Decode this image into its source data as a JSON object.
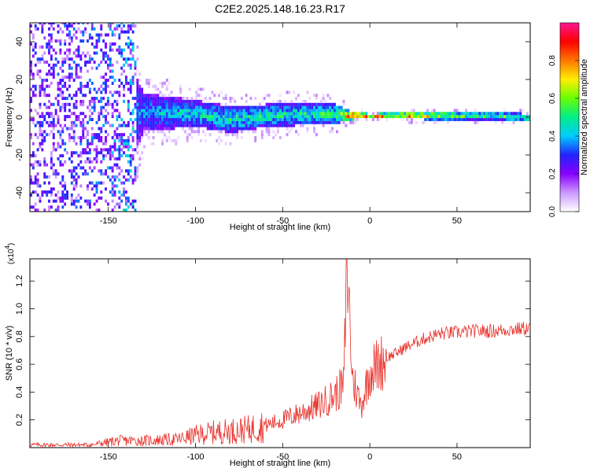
{
  "title": "C2E2.2025.148.16.23.R17",
  "colorbar": {
    "label": "Normalized spectral amplitude",
    "ticks": [
      "0.0",
      "0.2",
      "0.4",
      "0.6",
      "0.8"
    ],
    "tick_values": [
      0.0,
      0.2,
      0.4,
      0.6,
      0.8
    ],
    "range": [
      0,
      1
    ],
    "colors": [
      "#ffffff",
      "#cc99ff",
      "#8800ff",
      "#2222ff",
      "#00ccff",
      "#00ee88",
      "#66ff00",
      "#ffee00",
      "#ff7700",
      "#ff0000",
      "#ff1493"
    ]
  },
  "chart_data": [
    {
      "type": "heatmap",
      "xlabel": "Height of straight line (km)",
      "ylabel": "Frequency (Hz)",
      "xlim": [
        -195,
        92
      ],
      "ylim": [
        -50,
        50
      ],
      "x_ticks": [
        -150,
        -100,
        -50,
        0,
        50
      ],
      "y_ticks": [
        -40,
        -20,
        0,
        20,
        40
      ],
      "x_tick_labels": [
        "-150",
        "-100",
        "-50",
        "0",
        "50"
      ],
      "y_tick_labels": [
        "-40",
        "-20",
        "0",
        "20",
        "40"
      ],
      "band": {
        "x": [
          -195,
          -150,
          -130,
          -100,
          -80,
          -60,
          -40,
          -20,
          -10,
          0,
          10,
          30,
          50,
          70,
          90
        ],
        "center_hz": [
          0,
          1,
          2,
          1,
          -2,
          0,
          1,
          1,
          0,
          0,
          0,
          0,
          0,
          0,
          -1
        ],
        "halfwidth_hz": [
          50,
          50,
          10,
          7,
          7,
          6,
          6,
          5,
          2,
          1,
          1.5,
          2,
          2,
          2,
          2
        ],
        "amplitude": [
          0.25,
          0.3,
          0.4,
          0.45,
          0.5,
          0.5,
          0.5,
          0.55,
          0.95,
          0.9,
          0.85,
          0.8,
          0.6,
          0.55,
          0.6
        ]
      }
    },
    {
      "type": "line",
      "xlabel": "Height of straight line (km)",
      "ylabel": "SNR (10 * v/v)",
      "y_multiplier": "(x10",
      "y_multiplier_exp": "4",
      "y_multiplier_close": ")",
      "xlim": [
        -195,
        92
      ],
      "ylim": [
        0,
        1.36
      ],
      "x_ticks": [
        -150,
        -100,
        -50,
        0,
        50
      ],
      "y_ticks": [
        0.2,
        0.4,
        0.6,
        0.8,
        1.0,
        1.2
      ],
      "x_tick_labels": [
        "-150",
        "-100",
        "-50",
        "0",
        "50"
      ],
      "y_tick_labels": [
        "0.2",
        "0.4",
        "0.6",
        "0.8",
        "1.0",
        "1.2"
      ],
      "series": [
        {
          "color": "#e8302a",
          "x": [
            -195,
            -180,
            -160,
            -150,
            -145,
            -130,
            -110,
            -100,
            -90,
            -80,
            -70,
            -60,
            -50,
            -40,
            -30,
            -20,
            -15,
            -13,
            -10,
            -5,
            0,
            5,
            10,
            15,
            20,
            25,
            30,
            40,
            50,
            60,
            70,
            80,
            90
          ],
          "y": [
            0.02,
            0.02,
            0.02,
            0.04,
            0.05,
            0.05,
            0.06,
            0.09,
            0.11,
            0.12,
            0.13,
            0.16,
            0.2,
            0.25,
            0.3,
            0.38,
            0.45,
            1.35,
            0.5,
            0.3,
            0.55,
            0.6,
            0.65,
            0.68,
            0.72,
            0.75,
            0.78,
            0.82,
            0.83,
            0.84,
            0.84,
            0.85,
            0.86
          ]
        }
      ]
    }
  ]
}
